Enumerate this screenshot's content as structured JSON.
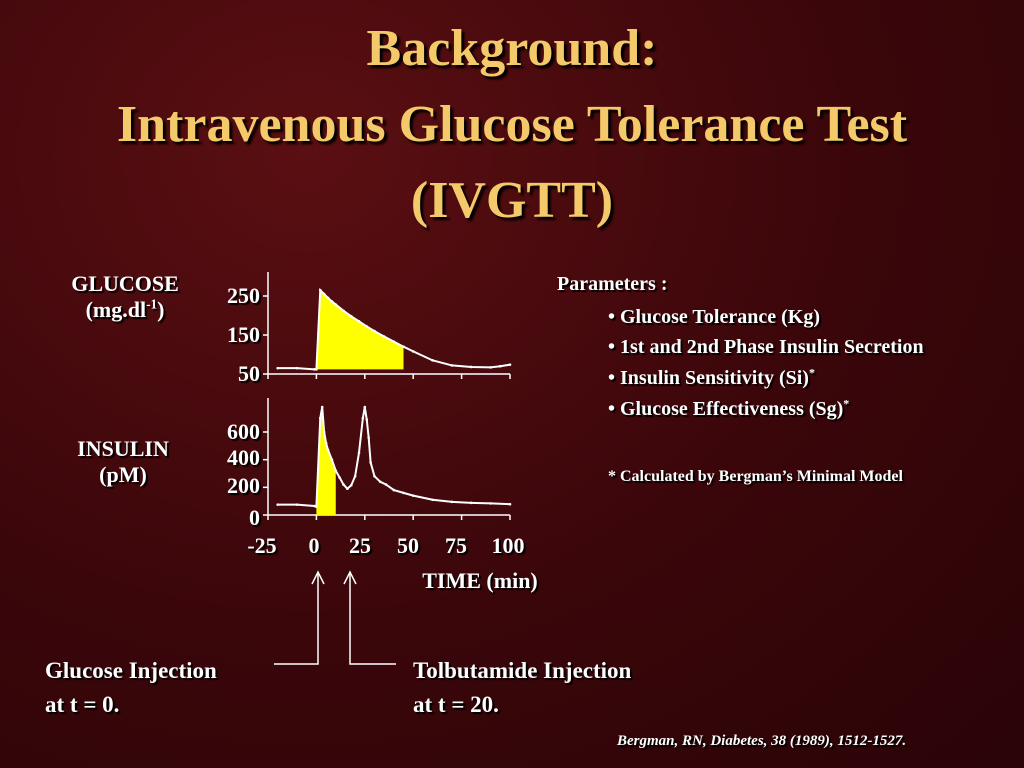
{
  "title": {
    "line1": "Background:",
    "line2": "Intravenous Glucose Tolerance Test",
    "line3": "(IVGTT)"
  },
  "glucose_panel": {
    "label_line1": "GLUCOSE",
    "label_line2_base": "(mg.dl",
    "label_line2_sup": "-1",
    "label_line2_end": ")",
    "ticks": [
      "250",
      "150",
      "50"
    ]
  },
  "insulin_panel": {
    "label_line1": "INSULIN",
    "label_line2": "(pM)",
    "ticks": [
      "600",
      "400",
      "200",
      "0"
    ]
  },
  "x_axis": {
    "ticks": [
      "-25",
      "0",
      "25",
      "50",
      "75",
      "100"
    ],
    "label": "TIME (min)"
  },
  "parameters": {
    "heading": "Parameters :",
    "items": [
      {
        "text": "• Glucose Tolerance (Kg)",
        "sup": ""
      },
      {
        "text": "• 1st and 2nd Phase Insulin Secretion",
        "sup": ""
      },
      {
        "text": "• Insulin Sensitivity (Si)",
        "sup": "*"
      },
      {
        "text": "• Glucose Effectiveness (Sg)",
        "sup": "*"
      }
    ],
    "note": "* Calculated by Bergman’s Minimal Model"
  },
  "annotations": {
    "glucose_injection_line1": "Glucose Injection",
    "glucose_injection_line2": "at t = 0.",
    "tolbutamide_injection_line1": "Tolbutamide Injection",
    "tolbutamide_injection_line2": "at t = 20."
  },
  "citation": "Bergman, RN, Diabetes, 38 (1989), 1512-1527.",
  "colors": {
    "title": "#f4c96a",
    "fill": "#ffff00",
    "curve": "#ffffff"
  },
  "chart_data": [
    {
      "type": "area",
      "ylabel": "GLUCOSE (mg.dl-1)",
      "xlabel": "TIME (min)",
      "xlim": [
        -25,
        100
      ],
      "yticks": [
        250,
        150,
        50
      ],
      "series": [
        {
          "x": [
            -20,
            -10,
            -1,
            0,
            2,
            4,
            6,
            8,
            10,
            14,
            18,
            22,
            26,
            30,
            35,
            40,
            45,
            50,
            60,
            70,
            80,
            90,
            95,
            100
          ],
          "values": [
            65,
            65,
            62,
            62,
            265,
            255,
            245,
            236,
            228,
            212,
            198,
            185,
            172,
            160,
            146,
            133,
            120,
            108,
            85,
            72,
            68,
            67,
            70,
            74
          ]
        }
      ],
      "shaded_range": [
        0,
        45
      ]
    },
    {
      "type": "area",
      "ylabel": "INSULIN (pM)",
      "xlabel": "TIME (min)",
      "xlim": [
        -25,
        100
      ],
      "yticks": [
        600,
        400,
        200,
        0
      ],
      "series": [
        {
          "x": [
            -20,
            -10,
            -1,
            0,
            2,
            3,
            4,
            5,
            6,
            8,
            10,
            12,
            14,
            16,
            18,
            20,
            22,
            24,
            25,
            26,
            27,
            28,
            30,
            33,
            36,
            40,
            45,
            50,
            60,
            70,
            80,
            90,
            100
          ],
          "values": [
            75,
            75,
            65,
            60,
            700,
            780,
            600,
            520,
            470,
            400,
            320,
            270,
            220,
            190,
            215,
            280,
            450,
            700,
            780,
            690,
            560,
            380,
            280,
            240,
            220,
            180,
            160,
            140,
            110,
            95,
            88,
            84,
            78
          ]
        }
      ],
      "shaded_range": [
        0,
        10
      ]
    }
  ]
}
